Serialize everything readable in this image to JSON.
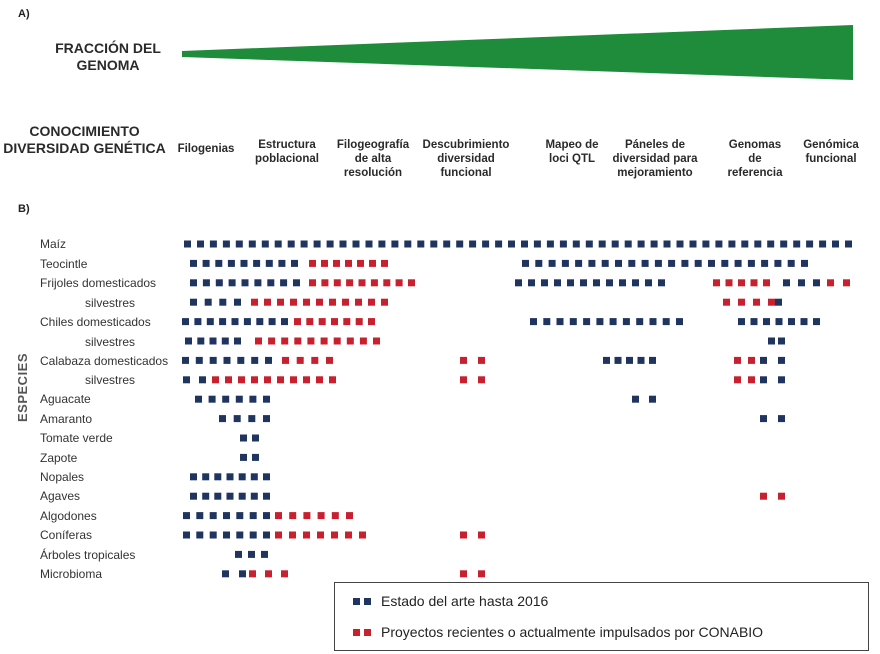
{
  "panel_a_label": "A)",
  "panel_b_label": "B)",
  "fraction_title": "FRACCIÓN DEL\nGENOMA",
  "knowledge_title": "CONOCIMIENTO\nDIVERSIDAD GENÉTICA",
  "columns": [
    "Filogenias",
    "Estructura\npoblacional",
    "Filogeografía\nde alta\nresolución",
    "Descubrimiento\ndiversidad\nfuncional",
    "Mapeo de\nloci QTL",
    "Páneles de\ndiversidad para\nmejoramiento",
    "Genomas\nde\nreferencia",
    "Genómica\nfuncional"
  ],
  "species_axis_label": "ESPECIES",
  "species": [
    "Maíz",
    "Teocintle",
    "Frijoles domesticados",
    "silvestres",
    "Chiles domesticados",
    "silvestres",
    "Calabaza domesticados",
    "silvestres",
    "Aguacate",
    "Amaranto",
    "Tomate verde",
    "Zapote",
    "Nopales",
    "Agaves",
    "Algodones",
    "Coníferas",
    "Árboles tropicales",
    "Microbioma"
  ],
  "legend": {
    "blue_label": "Estado del arte hasta 2016",
    "red_label": "Proyectos recientes o actualmente impulsados por CONABIO"
  },
  "colors": {
    "blue": "#1f3560",
    "red": "#c8202f",
    "green": "#1e8c3a"
  },
  "bars": [
    [
      [
        "b",
        184,
        852
      ]
    ],
    [
      [
        "b",
        190,
        298
      ],
      [
        "r",
        309,
        388
      ],
      [
        "b",
        522,
        808
      ]
    ],
    [
      [
        "b",
        190,
        300
      ],
      [
        "r",
        309,
        415
      ],
      [
        "b",
        515,
        665
      ],
      [
        "r",
        713,
        770
      ],
      [
        "b",
        783,
        820
      ],
      [
        "r",
        827,
        850
      ]
    ],
    [
      [
        "b",
        190,
        241
      ],
      [
        "r",
        251,
        388
      ],
      [
        "r",
        723,
        775
      ],
      [
        "b",
        775,
        785
      ]
    ],
    [
      [
        "b",
        182,
        288
      ],
      [
        "r",
        294,
        375
      ],
      [
        "b",
        530,
        683
      ],
      [
        "b",
        738,
        820
      ]
    ],
    [
      [
        "b",
        185,
        241
      ],
      [
        "r",
        255,
        380
      ],
      [
        "b",
        768,
        785
      ]
    ],
    [
      [
        "b",
        182,
        272
      ],
      [
        "r",
        282,
        333
      ],
      [
        "r",
        460,
        485
      ],
      [
        "b",
        603,
        656
      ],
      [
        "r",
        734,
        755
      ],
      [
        "b",
        760,
        785
      ]
    ],
    [
      [
        "b",
        183,
        206
      ],
      [
        "r",
        212,
        336
      ],
      [
        "r",
        460,
        485
      ],
      [
        "r",
        734,
        755
      ],
      [
        "b",
        760,
        785
      ]
    ],
    [
      [
        "b",
        195,
        270
      ],
      [
        "b",
        632,
        656
      ]
    ],
    [
      [
        "b",
        219,
        270
      ],
      [
        "b",
        760,
        785
      ]
    ],
    [
      [
        "b",
        240,
        259
      ]
    ],
    [
      [
        "b",
        240,
        259
      ]
    ],
    [
      [
        "b",
        190,
        270
      ]
    ],
    [
      [
        "b",
        190,
        270
      ],
      [
        "r",
        760,
        785
      ]
    ],
    [
      [
        "b",
        183,
        270
      ],
      [
        "r",
        275,
        353
      ]
    ],
    [
      [
        "b",
        183,
        270
      ],
      [
        "r",
        275,
        366
      ],
      [
        "r",
        460,
        485
      ]
    ],
    [
      [
        "b",
        235,
        268
      ]
    ],
    [
      [
        "b",
        222,
        246
      ],
      [
        "r",
        249,
        288
      ],
      [
        "r",
        460,
        485
      ]
    ]
  ]
}
